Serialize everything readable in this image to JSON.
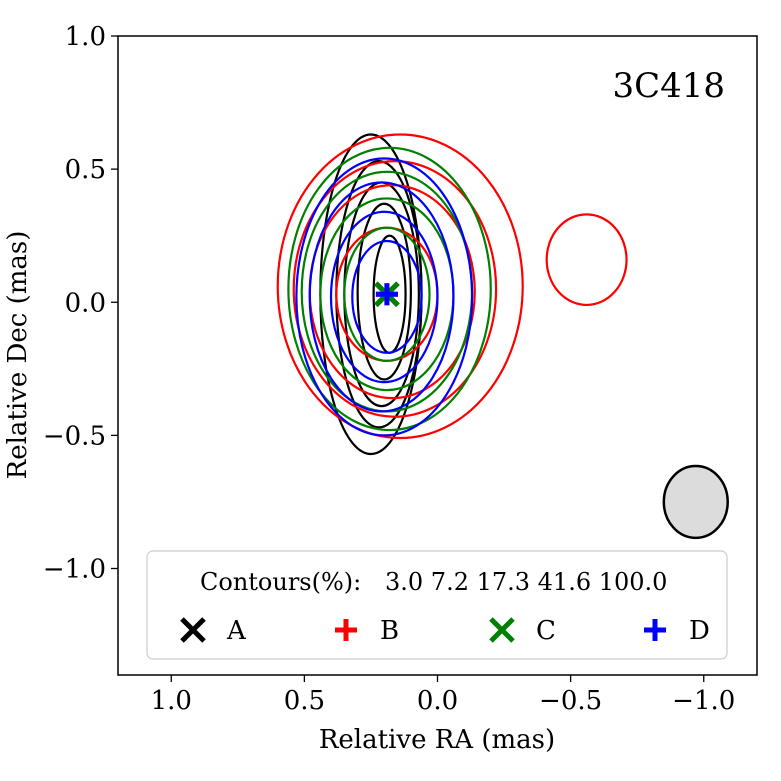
{
  "chart_data": {
    "type": "contour",
    "source_name": "3C418",
    "xlabel": "Relative RA (mas)",
    "ylabel": "Relative Dec (mas)",
    "xlim": [
      1.2,
      -1.2
    ],
    "ylim": [
      -1.4,
      1.0
    ],
    "x_ticks": [
      1.0,
      0.5,
      0.0,
      -0.5,
      -1.0
    ],
    "x_tick_labels": [
      "1.0",
      "0.5",
      "0.0",
      "−0.5",
      "−1.0"
    ],
    "y_ticks": [
      1.0,
      0.5,
      0.0,
      -0.5,
      -1.0
    ],
    "y_tick_labels": [
      "1.0",
      "0.5",
      "0.0",
      "−0.5",
      "−1.0"
    ],
    "contour_levels_label": "Contours(%):",
    "contour_levels": [
      3.0,
      7.2,
      17.3,
      41.6,
      100.0
    ],
    "contour_levels_text": "3.0 7.2 17.3 41.6 100.0",
    "series": [
      {
        "name": "A",
        "color": "#000000",
        "marker": "x",
        "peak": [
          0.19,
          0.03
        ],
        "contours": [
          {
            "cx": 0.25,
            "cy": 0.03,
            "rx": 0.19,
            "ry": 0.6
          },
          {
            "cx": 0.22,
            "cy": 0.03,
            "rx": 0.16,
            "ry": 0.5
          },
          {
            "cx": 0.21,
            "cy": 0.03,
            "rx": 0.14,
            "ry": 0.42
          },
          {
            "cx": 0.2,
            "cy": 0.04,
            "rx": 0.1,
            "ry": 0.33
          },
          {
            "cx": 0.18,
            "cy": 0.03,
            "rx": 0.06,
            "ry": 0.22
          }
        ]
      },
      {
        "name": "B",
        "color": "#ff0000",
        "marker": "+",
        "peak": [
          0.19,
          0.03
        ],
        "contours": [
          {
            "cx": 0.14,
            "cy": 0.06,
            "rx": 0.46,
            "ry": 0.57
          },
          {
            "cx": 0.16,
            "cy": 0.05,
            "rx": 0.38,
            "ry": 0.48
          },
          {
            "cx": 0.17,
            "cy": 0.04,
            "rx": 0.31,
            "ry": 0.4
          },
          {
            "cx": 0.19,
            "cy": 0.03,
            "rx": 0.19,
            "ry": 0.25
          }
        ],
        "secondary_contour": {
          "cx": -0.56,
          "cy": 0.16,
          "rx": 0.15,
          "ry": 0.17
        }
      },
      {
        "name": "C",
        "color": "#008000",
        "marker": "x",
        "peak": [
          0.19,
          0.03
        ],
        "contours": [
          {
            "cx": 0.18,
            "cy": 0.05,
            "rx": 0.38,
            "ry": 0.53
          },
          {
            "cx": 0.19,
            "cy": 0.04,
            "rx": 0.32,
            "ry": 0.45
          },
          {
            "cx": 0.19,
            "cy": 0.03,
            "rx": 0.25,
            "ry": 0.36
          },
          {
            "cx": 0.19,
            "cy": 0.03,
            "rx": 0.16,
            "ry": 0.25
          }
        ]
      },
      {
        "name": "D",
        "color": "#0000ff",
        "marker": "+",
        "peak": [
          0.19,
          0.03
        ],
        "contours": [
          {
            "cx": 0.2,
            "cy": 0.02,
            "rx": 0.33,
            "ry": 0.52
          },
          {
            "cx": 0.21,
            "cy": 0.02,
            "rx": 0.27,
            "ry": 0.43
          },
          {
            "cx": 0.2,
            "cy": 0.02,
            "rx": 0.2,
            "ry": 0.32
          },
          {
            "cx": 0.19,
            "cy": 0.02,
            "rx": 0.13,
            "ry": 0.21
          }
        ]
      }
    ],
    "beam": {
      "cx": -0.97,
      "cy": -0.75,
      "rx": 0.12,
      "ry": 0.135,
      "fill": "#dcdcdc",
      "edge": "#000000"
    },
    "legend_position": "lower-center",
    "grid": false
  }
}
